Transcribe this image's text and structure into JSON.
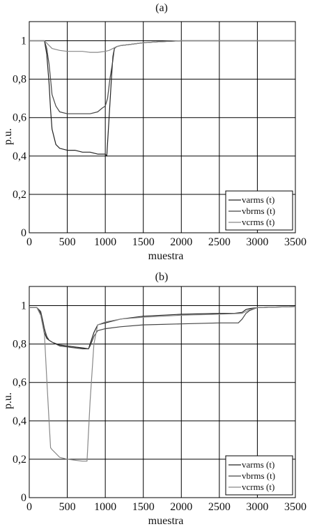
{
  "chart_data": [
    {
      "type": "line",
      "title": "(a)",
      "xlabel": "muestra",
      "ylabel": "p.u.",
      "xlim": [
        0,
        3500
      ],
      "ylim": [
        0,
        1.1
      ],
      "xticks": [
        0,
        500,
        1000,
        1500,
        2000,
        2500,
        3000,
        3500
      ],
      "yticks": [
        0,
        0.2,
        0.4,
        0.6,
        0.8,
        1
      ],
      "yticklabels": [
        "0",
        "0,2",
        "0,4",
        "0,6",
        "0,8",
        "1"
      ],
      "grid": true,
      "legend": "bottom-right",
      "series": [
        {
          "name": "varms (t)",
          "color": "#222222",
          "x": [
            0,
            200,
            230,
            260,
            280,
            300,
            350,
            400,
            500,
            600,
            700,
            800,
            900,
            1000,
            1020,
            1050,
            1080,
            1100,
            1120,
            1150,
            1200,
            1300,
            1500,
            1700,
            2000,
            2500,
            3000,
            3500
          ],
          "y": [
            1.0,
            1.0,
            0.93,
            0.78,
            0.64,
            0.54,
            0.46,
            0.44,
            0.43,
            0.43,
            0.42,
            0.42,
            0.41,
            0.41,
            0.4,
            0.6,
            0.8,
            0.92,
            0.96,
            0.97,
            0.975,
            0.98,
            0.99,
            0.995,
            1.0,
            1.0,
            1.0,
            1.0
          ]
        },
        {
          "name": "vbrms (t)",
          "color": "#444444",
          "x": [
            0,
            200,
            230,
            260,
            280,
            300,
            350,
            400,
            500,
            600,
            700,
            800,
            900,
            960,
            1000,
            1030,
            1060,
            1100,
            1120,
            1150,
            1200,
            1300,
            1500,
            1700,
            2000,
            2500,
            3000,
            3500
          ],
          "y": [
            1.0,
            1.0,
            0.96,
            0.88,
            0.8,
            0.72,
            0.66,
            0.63,
            0.62,
            0.62,
            0.62,
            0.62,
            0.63,
            0.65,
            0.66,
            0.7,
            0.8,
            0.9,
            0.96,
            0.97,
            0.975,
            0.98,
            0.99,
            0.995,
            1.0,
            1.0,
            1.0,
            1.0
          ]
        },
        {
          "name": "vcrms (t)",
          "color": "#888888",
          "x": [
            0,
            200,
            250,
            300,
            400,
            500,
            600,
            700,
            800,
            900,
            1000,
            1050,
            1100,
            1150,
            1200,
            1300,
            1500,
            1700,
            2000,
            2500,
            3000,
            3500
          ],
          "y": [
            1.0,
            1.0,
            0.98,
            0.96,
            0.95,
            0.945,
            0.945,
            0.945,
            0.94,
            0.94,
            0.945,
            0.95,
            0.96,
            0.97,
            0.975,
            0.98,
            0.99,
            0.995,
            1.0,
            1.0,
            1.0,
            1.0
          ]
        }
      ]
    },
    {
      "type": "line",
      "title": "(b)",
      "xlabel": "muestra",
      "ylabel": "p.u.",
      "xlim": [
        0,
        3500
      ],
      "ylim": [
        0,
        1.1
      ],
      "xticks": [
        0,
        500,
        1000,
        1500,
        2000,
        2500,
        3000,
        3500
      ],
      "yticks": [
        0,
        0.2,
        0.4,
        0.6,
        0.8,
        1
      ],
      "yticklabels": [
        "0",
        "0,2",
        "0,4",
        "0,6",
        "0,8",
        "1"
      ],
      "grid": true,
      "legend": "bottom-right",
      "series": [
        {
          "name": "varms (t)",
          "color": "#222222",
          "x": [
            0,
            100,
            150,
            180,
            200,
            230,
            260,
            300,
            400,
            500,
            600,
            700,
            780,
            800,
            850,
            900,
            1000,
            1200,
            1500,
            2000,
            2500,
            2700,
            2800,
            2850,
            2900,
            3000,
            3500
          ],
          "y": [
            0.99,
            0.99,
            0.96,
            0.9,
            0.86,
            0.83,
            0.82,
            0.81,
            0.795,
            0.79,
            0.785,
            0.78,
            0.775,
            0.8,
            0.86,
            0.9,
            0.91,
            0.93,
            0.945,
            0.955,
            0.96,
            0.96,
            0.965,
            0.98,
            0.985,
            0.99,
            0.995
          ]
        },
        {
          "name": "vbrms (t)",
          "color": "#444444",
          "x": [
            0,
            100,
            150,
            180,
            200,
            230,
            260,
            300,
            400,
            500,
            600,
            700,
            780,
            800,
            850,
            900,
            1000,
            1200,
            1500,
            2000,
            2500,
            2700,
            2750,
            2800,
            2850,
            2900,
            3000,
            3500
          ],
          "y": [
            0.99,
            0.99,
            0.97,
            0.92,
            0.88,
            0.84,
            0.82,
            0.81,
            0.79,
            0.785,
            0.78,
            0.775,
            0.775,
            0.79,
            0.84,
            0.87,
            0.88,
            0.89,
            0.9,
            0.905,
            0.91,
            0.91,
            0.91,
            0.93,
            0.96,
            0.975,
            0.99,
            0.995
          ]
        },
        {
          "name": "vcrms (t)",
          "color": "#888888",
          "x": [
            0,
            100,
            150,
            200,
            230,
            260,
            280,
            300,
            350,
            400,
            450,
            500,
            600,
            700,
            760,
            800,
            850,
            900,
            1000,
            1200,
            1500,
            2000,
            2500,
            2800,
            2900,
            3000,
            3500
          ],
          "y": [
            0.99,
            0.99,
            0.95,
            0.85,
            0.62,
            0.4,
            0.26,
            0.25,
            0.23,
            0.21,
            0.205,
            0.2,
            0.195,
            0.19,
            0.19,
            0.5,
            0.8,
            0.9,
            0.915,
            0.93,
            0.94,
            0.95,
            0.955,
            0.96,
            0.98,
            0.99,
            0.995
          ]
        }
      ]
    }
  ]
}
